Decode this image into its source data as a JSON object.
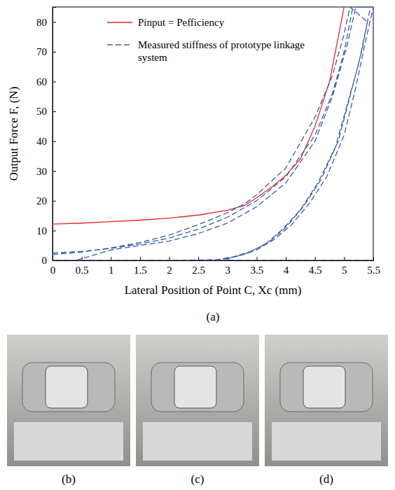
{
  "chart_data": {
    "type": "line",
    "panel_label": "(a)",
    "x_label": "Lateral Position of Point C, Xc (mm)",
    "y_label": "Output Force F, (N)",
    "xlim": [
      0,
      5.5
    ],
    "ylim": [
      0,
      85
    ],
    "xticks": [
      0,
      0.5,
      1,
      1.5,
      2,
      2.5,
      3,
      3.5,
      4,
      4.5,
      5,
      5.5
    ],
    "yticks": [
      0,
      10,
      20,
      30,
      40,
      50,
      60,
      70,
      80
    ],
    "grid": false,
    "legend": "upper left",
    "series": [
      {
        "name": "Pinput = Pefficiency",
        "color": "#e8262b",
        "line_style": "solid",
        "x": [
          0,
          0.5,
          1,
          1.5,
          2,
          2.5,
          3,
          3.3,
          3.5,
          3.75,
          4,
          4.25,
          4.5,
          4.75,
          4.9,
          5.0
        ],
        "values": [
          12.2,
          12.5,
          13,
          13.5,
          14.2,
          15.2,
          16.8,
          18.5,
          21,
          24.5,
          28.5,
          34,
          45,
          60,
          75,
          85
        ]
      },
      {
        "name": "Measured stiffness of prototype linkage system",
        "color": "#3a5ba9",
        "line_style": "dashed",
        "x": [
          0,
          0.5,
          1,
          1.5,
          2,
          2.5,
          3,
          3.5,
          4,
          4.5,
          4.8,
          5,
          5.15,
          5.5,
          5.35,
          5.2,
          5,
          4.7,
          4.4,
          4.1,
          3.8,
          3.5,
          3.2,
          2.9,
          2,
          1,
          0,
          null,
          0.4,
          1,
          1.5,
          2,
          2.5,
          3,
          3.5,
          4,
          4.5,
          4.8,
          5.05,
          5.2,
          5.45,
          5.3,
          5.1,
          4.9,
          4.6,
          4.3,
          4,
          3.7,
          3.4,
          3.1,
          2.8,
          2.5,
          null,
          0,
          0.5,
          1,
          1.5,
          2,
          2.5,
          3,
          3.3,
          3.5,
          4,
          4.5,
          4.8,
          5,
          5.1,
          5.4,
          5.25,
          5.05,
          4.85,
          4.55,
          4.25,
          3.95,
          3.65,
          3.35,
          3.05,
          2.9,
          4,
          5.5
        ],
        "values": [
          2.5,
          3,
          4,
          5.5,
          7.5,
          10.5,
          14.5,
          20,
          28,
          42,
          56,
          70,
          85,
          85,
          72,
          58,
          42,
          28,
          19,
          12,
          7,
          3.5,
          1.5,
          0.3,
          0,
          0,
          0,
          null,
          0,
          3.5,
          5,
          6.5,
          9,
          12.5,
          18,
          26,
          40,
          55,
          72,
          85,
          85,
          70,
          55,
          40,
          27,
          18,
          11,
          6,
          3,
          1.2,
          0.2,
          0,
          null,
          2,
          2.8,
          4.2,
          6,
          8.5,
          12,
          16,
          19,
          22,
          31,
          48,
          62,
          76,
          85,
          80,
          66,
          52,
          38,
          26,
          17,
          10.5,
          5.5,
          2.5,
          0.8,
          0,
          0,
          0
        ]
      }
    ]
  },
  "photos": {
    "labels": [
      "(b)",
      "(c)",
      "(d)"
    ]
  }
}
